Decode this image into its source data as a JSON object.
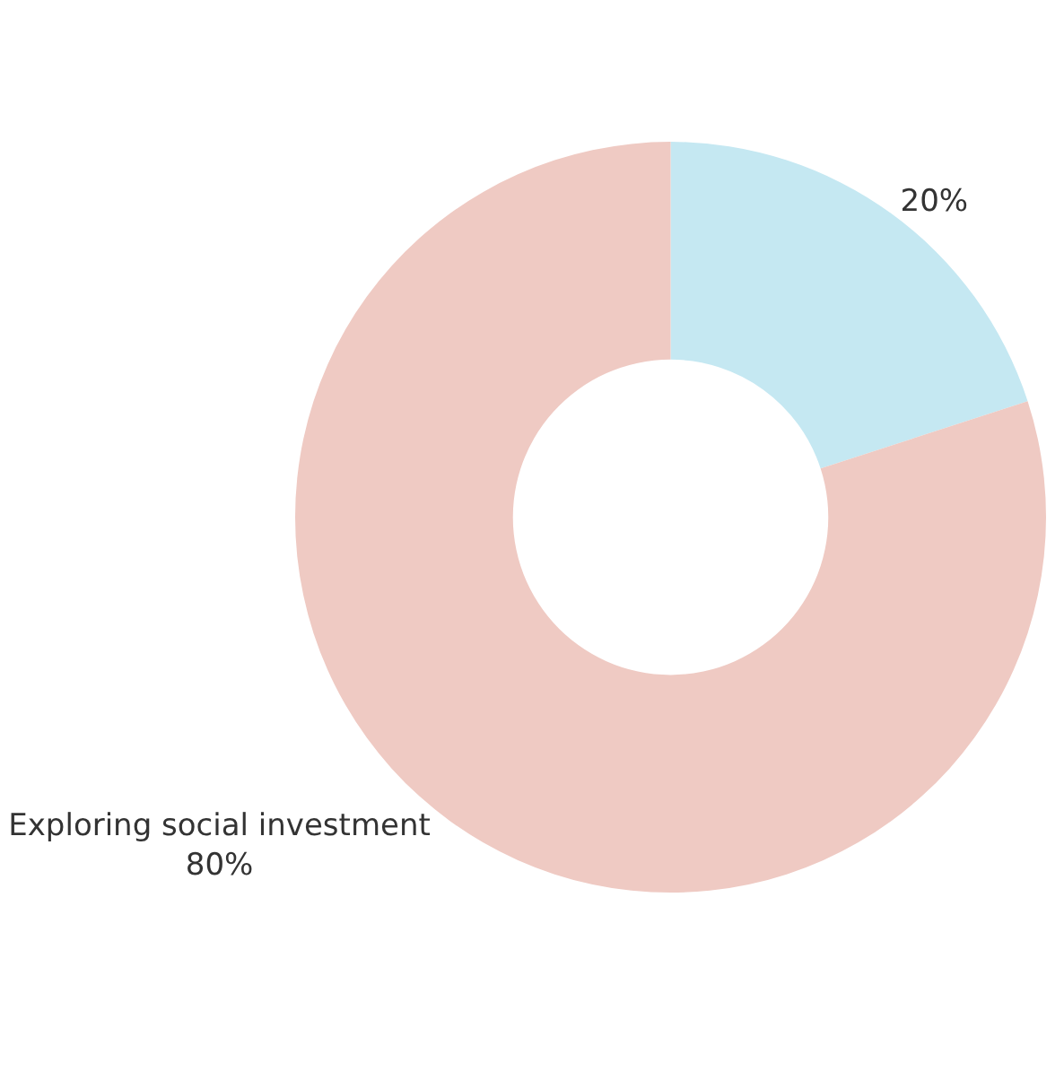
{
  "chart_data": {
    "type": "donut",
    "categories": [
      null,
      "Exploring social investment"
    ],
    "values": [
      20,
      80
    ],
    "colors": [
      "#c5e8f2",
      "#efcac3"
    ],
    "value_labels": [
      "20%",
      "80%"
    ]
  }
}
